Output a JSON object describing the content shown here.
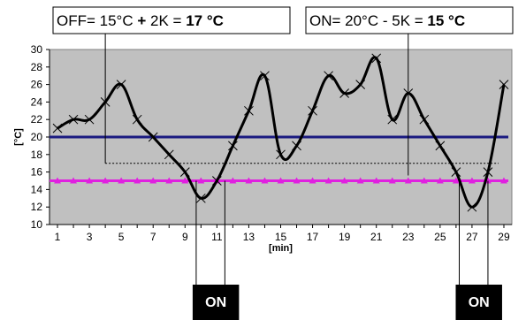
{
  "chart_data": {
    "type": "line",
    "xlabel": "[min]",
    "ylabel": "[°C]",
    "ylim": [
      10,
      30
    ],
    "yticks": [
      10,
      12,
      14,
      16,
      18,
      20,
      22,
      24,
      26,
      28,
      30
    ],
    "xticks": [
      1,
      3,
      5,
      7,
      9,
      11,
      13,
      15,
      17,
      19,
      21,
      23,
      25,
      27,
      29
    ],
    "xlim": [
      0.5,
      29.5
    ],
    "grid": false,
    "background_color": "#c0c0c0",
    "series": [
      {
        "type": "line-smooth",
        "color": "#000000",
        "marker": "x",
        "x": [
          1,
          2,
          3,
          4,
          5,
          6,
          7,
          8,
          9,
          10,
          11,
          12,
          13,
          14,
          15,
          16,
          17,
          18,
          19,
          20,
          21,
          22,
          23,
          24,
          25,
          26,
          27,
          28,
          29
        ],
        "values": [
          21,
          22,
          22,
          24,
          26,
          22,
          20,
          18,
          16,
          13,
          15,
          19,
          23,
          27,
          18,
          19,
          23,
          27,
          25,
          26,
          29,
          22,
          25,
          22,
          19,
          16,
          12,
          16,
          26
        ]
      },
      {
        "type": "horizontal-line",
        "color": "#1a1a80",
        "value": 20
      },
      {
        "type": "horizontal-line",
        "color": "#e020e0",
        "marker": "triangle",
        "value": 15
      },
      {
        "type": "dotted-line",
        "color": "#000000",
        "value": 17
      }
    ],
    "annotations": {
      "off_box": {
        "text_plain": "OFF= 15°C ",
        "text_plus": "+",
        "text_mid": " 2K = ",
        "text_bold": "17 °C",
        "anchor_x": 4
      },
      "on_box": {
        "text_plain": "ON= 20°C - 5K = ",
        "text_bold": "15 °C",
        "anchor_x": 23
      },
      "on_markers": [
        {
          "label": "ON",
          "x_start": 9.7,
          "x_end": 11.5
        },
        {
          "label": "ON",
          "x_start": 26.2,
          "x_end": 28
        }
      ]
    }
  }
}
